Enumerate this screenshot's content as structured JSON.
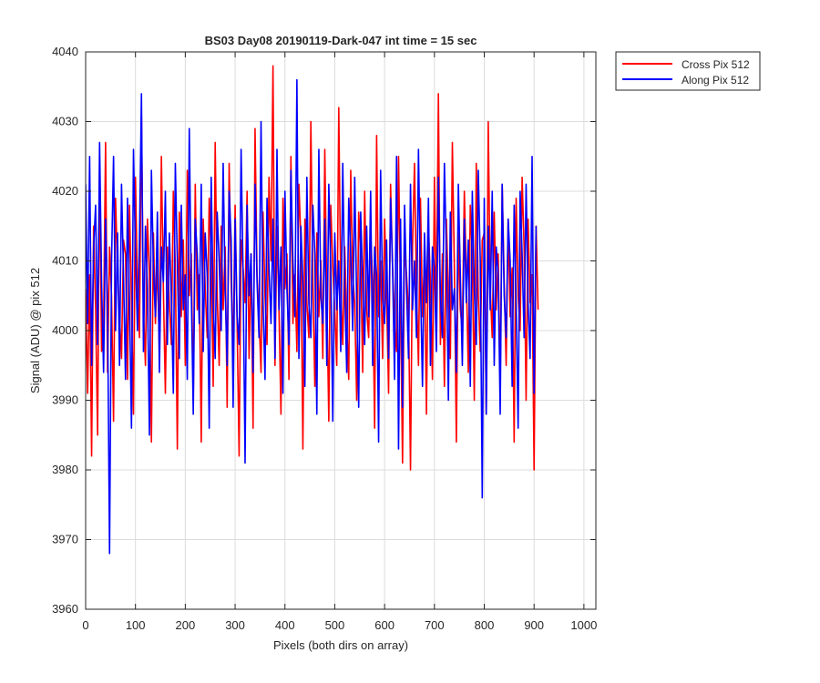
{
  "chart_data": {
    "type": "line",
    "title": "BS03 Day08 20190119-Dark-047 int time = 15 sec",
    "xlabel": "Pixels (both dirs on array)",
    "ylabel": "Signal (ADU) @ pix 512",
    "xlim": [
      0,
      1024
    ],
    "ylim": [
      3960,
      4040
    ],
    "xticks": [
      0,
      100,
      200,
      300,
      400,
      500,
      600,
      700,
      800,
      900,
      1000
    ],
    "yticks": [
      3960,
      3970,
      3980,
      3990,
      4000,
      4010,
      4020,
      4030,
      4040
    ],
    "grid": true,
    "legend_position": "outside top-right",
    "x_step": 4,
    "series": [
      {
        "name": "Cross Pix 512",
        "color": "#ff0000",
        "values": [
          4006,
          3991,
          4008,
          3982,
          4015,
          4003,
          3985,
          4024,
          3997,
          4001,
          4027,
          3994,
          4012,
          4005,
          3987,
          4019,
          4009,
          4002,
          3996,
          4013,
          4011,
          3993,
          4018,
          4004,
          3988,
          4022,
          4006,
          3999,
          4031,
          4003,
          3995,
          4016,
          4008,
          3984,
          4014,
          4001,
          4010,
          3997,
          4025,
          4006,
          3991,
          4012,
          4004,
          3998,
          4020,
          4009,
          3983,
          4017,
          4002,
          4013,
          3995,
          4023,
          4005,
          4011,
          3990,
          4021,
          4003,
          4008,
          3984,
          4016,
          4006,
          3999,
          4019,
          4010,
          3992,
          4027,
          4005,
          3995,
          4015,
          4003,
          4012,
          3989,
          4024,
          4007,
          3997,
          4018,
          4001,
          3982,
          4013,
          4009,
          4004,
          4020,
          3996,
          4011,
          3986,
          4029,
          4008,
          4002,
          3994,
          4017,
          4005,
          3998,
          4022,
          4010,
          4038,
          3995,
          4015,
          4003,
          3988,
          4019,
          4006,
          4011,
          3993,
          4025,
          4001,
          4008,
          3997,
          4021,
          4013,
          3983,
          4016,
          4004,
          3999,
          4030,
          4007,
          3992,
          4014,
          4002,
          4010,
          3996,
          4026,
          4005,
          3987,
          4018,
          4009,
          4003,
          3995,
          4032,
          4006,
          3998,
          4012,
          4001,
          3993,
          4023,
          4008,
          4004,
          3990,
          4017,
          4011,
          3994,
          4020,
          4003,
          3999,
          4014,
          4007,
          3986,
          4028,
          4002,
          4010,
          3996,
          4016,
          4005,
          3991,
          4021,
          4009,
          4001,
          3997,
          4025,
          4004,
          3981,
          4013,
          4008,
          4003,
          3980,
          4012,
          4024,
          4006,
          3995,
          4019,
          4002,
          4010,
          3988,
          4015,
          4007,
          3993,
          4022,
          4003,
          4034,
          3998,
          4011,
          3992,
          4016,
          4005,
          3996,
          4027,
          4009,
          3984,
          4014,
          4003,
          4000,
          4020,
          4008,
          3994,
          4018,
          4011,
          3990,
          4024,
          4005,
          3997,
          4013,
          4014,
          3988,
          4030,
          4006,
          3999,
          4017,
          4003,
          4011,
          3992,
          4021,
          4007,
          3995,
          4016,
          4002,
          4009,
          3984,
          4019,
          4005,
          4000,
          4022,
          4012,
          3990,
          4016,
          4004,
          4008,
          3980,
          4015,
          4003
        ]
      },
      {
        "name": "Along Pix 512",
        "color": "#0000ff",
        "values": [
          4021,
          4001,
          4025,
          3995,
          4012,
          4018,
          3998,
          4027,
          4007,
          3994,
          4016,
          4003,
          3968,
          4010,
          4025,
          4000,
          4014,
          3995,
          4021,
          4008,
          3993,
          4019,
          4004,
          3986,
          4026,
          4011,
          4000,
          4013,
          4034,
          3997,
          4015,
          4006,
          3985,
          4023,
          4009,
          4002,
          4017,
          3994,
          4012,
          4007,
          4020,
          3998,
          4014,
          4005,
          3991,
          4024,
          4010,
          3996,
          4018,
          4003,
          4008,
          3993,
          4029,
          4006,
          3988,
          4016,
          4011,
          4001,
          4021,
          3997,
          4014,
          4008,
          3986,
          4022,
          4004,
          3996,
          4017,
          4010,
          4000,
          4024,
          4006,
          3995,
          4020,
          4013,
          3989,
          4016,
          4002,
          3998,
          4026,
          4008,
          3981,
          4018,
          4005,
          4011,
          3994,
          4021,
          4007,
          3999,
          4030,
          4004,
          3993,
          4019,
          4009,
          4001,
          4016,
          3996,
          4026,
          4003,
          4012,
          3991,
          4020,
          4006,
          3998,
          4023,
          4010,
          4002,
          4036,
          3996,
          4015,
          4007,
          3992,
          4022,
          4004,
          3999,
          4018,
          4011,
          3988,
          4026,
          4005,
          4001,
          4016,
          3995,
          4021,
          4009,
          3987,
          4014,
          4003,
          4010,
          3997,
          4024,
          4006,
          3994,
          4019,
          4011,
          4000,
          4022,
          4004,
          3989,
          4017,
          4007,
          3998,
          4015,
          4002,
          4020,
          3995,
          4012,
          4008,
          3984,
          4023,
          4005,
          4001,
          4013,
          3996,
          4019,
          4009,
          3993,
          4025,
          3983,
          4016,
          3989,
          4018,
          4006,
          3996,
          4021,
          4003,
          4010,
          3999,
          4026,
          4007,
          3992,
          4014,
          4004,
          4019,
          3995,
          4012,
          4009,
          3997,
          4022,
          4005,
          3999,
          4024,
          4011,
          3990,
          4017,
          4003,
          4006,
          3994,
          4021,
          4008,
          3995,
          4016,
          4004,
          4013,
          3992,
          4020,
          4006,
          3998,
          4023,
          4010,
          3976,
          4019,
          3988,
          4015,
          4003,
          4020,
          3995,
          4012,
          4008,
          3988,
          4021,
          4005,
          3999,
          4016,
          4010,
          3992,
          4018,
          4004,
          3986,
          4020,
          4011,
          3999,
          4021,
          4004,
          3996,
          4025,
          3991,
          4015
        ]
      }
    ]
  }
}
